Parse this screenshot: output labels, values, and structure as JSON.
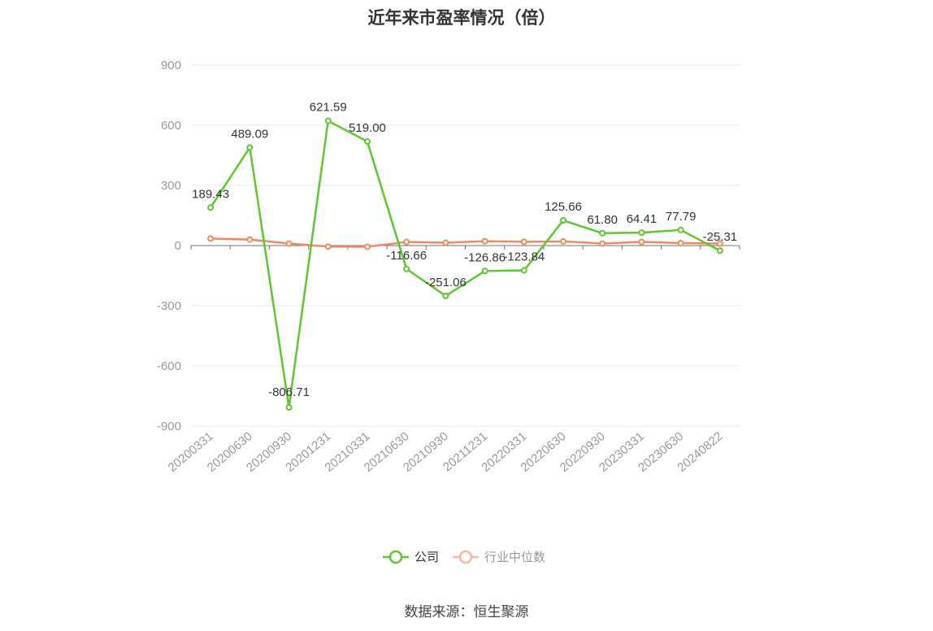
{
  "chart_data": {
    "type": "line",
    "title": "近年来市盈率情况（倍）",
    "categories": [
      "20200331",
      "20200630",
      "20200930",
      "20201231",
      "20210331",
      "20210630",
      "20210930",
      "20211231",
      "20220331",
      "20220630",
      "20220930",
      "20230331",
      "20230630",
      "20240822"
    ],
    "series": [
      {
        "name": "公司",
        "color": "#5cc82e",
        "values": [
          189.43,
          489.09,
          -806.71,
          621.59,
          519.0,
          -116.66,
          -251.06,
          -126.86,
          -123.84,
          125.66,
          61.8,
          64.41,
          77.79,
          -25.31
        ],
        "labels": [
          "189.43",
          "489.09",
          "-806.71",
          "621.59",
          "519.00",
          "-116.66",
          "-251.06",
          "-126.86",
          "-123.84",
          "125.66",
          "61.80",
          "64.41",
          "77.79",
          "-25.31"
        ]
      },
      {
        "name": "行业中位数",
        "color": "#f08a5d",
        "values": [
          35,
          30,
          10,
          -5,
          -6,
          18,
          14,
          22,
          19,
          21,
          10,
          18,
          12,
          10
        ]
      }
    ],
    "ylim": [
      -900,
      900
    ],
    "yticks": [
      900,
      600,
      300,
      0,
      -300,
      -600,
      -900
    ],
    "grid": true,
    "legend_position": "bottom"
  },
  "source": "数据来源：恒生聚源"
}
